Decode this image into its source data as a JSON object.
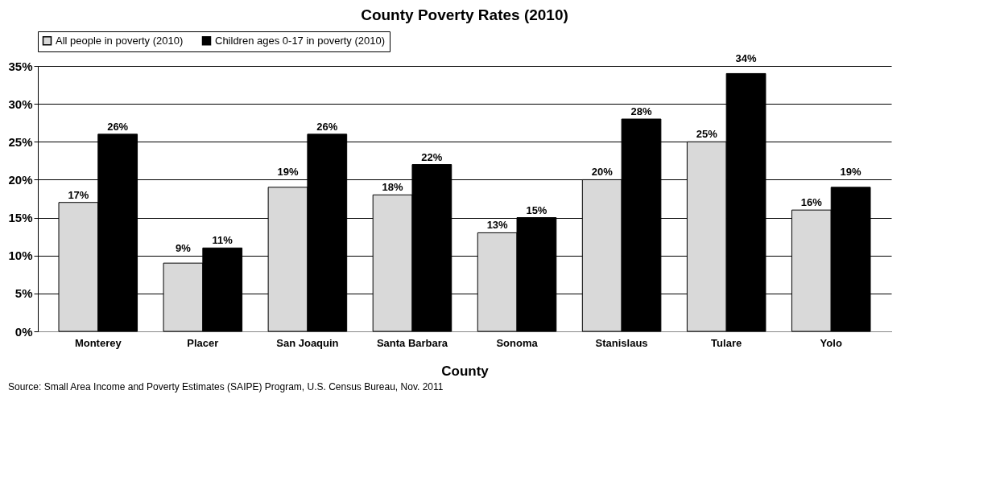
{
  "chart_data": {
    "type": "bar",
    "title": "County Poverty Rates (2010)",
    "xlabel": "County",
    "categories": [
      "Monterey",
      "Placer",
      "San Joaquin",
      "Santa Barbara",
      "Sonoma",
      "Stanislaus",
      "Tulare",
      "Yolo"
    ],
    "series": [
      {
        "name": "All people in poverty (2010)",
        "color": "#d9d9d9",
        "values": [
          17,
          9,
          19,
          18,
          13,
          20,
          25,
          16
        ],
        "value_labels": [
          "17%",
          "9%",
          "19%",
          "18%",
          "13%",
          "20%",
          "25%",
          "16%"
        ]
      },
      {
        "name": "Children ages 0-17 in poverty (2010)",
        "color": "#000000",
        "values": [
          26,
          11,
          26,
          22,
          15,
          28,
          34,
          19
        ],
        "value_labels": [
          "26%",
          "11%",
          "26%",
          "22%",
          "15%",
          "28%",
          "34%",
          "19%"
        ]
      }
    ],
    "ylim": [
      0,
      35
    ],
    "yticks": [
      {
        "value": 0,
        "label": "0%"
      },
      {
        "value": 5,
        "label": "5%"
      },
      {
        "value": 10,
        "label": "10%"
      },
      {
        "value": 15,
        "label": "15%"
      },
      {
        "value": 20,
        "label": "20%"
      },
      {
        "value": 25,
        "label": "25%"
      },
      {
        "value": 30,
        "label": "30%"
      },
      {
        "value": 35,
        "label": "35%"
      }
    ],
    "grid": "y",
    "legend": "top",
    "annotations": [
      "Source: Small Area Income and Poverty Estimates (SAIPE) Program, U.S. Census Bureau, Nov. 2011"
    ]
  }
}
